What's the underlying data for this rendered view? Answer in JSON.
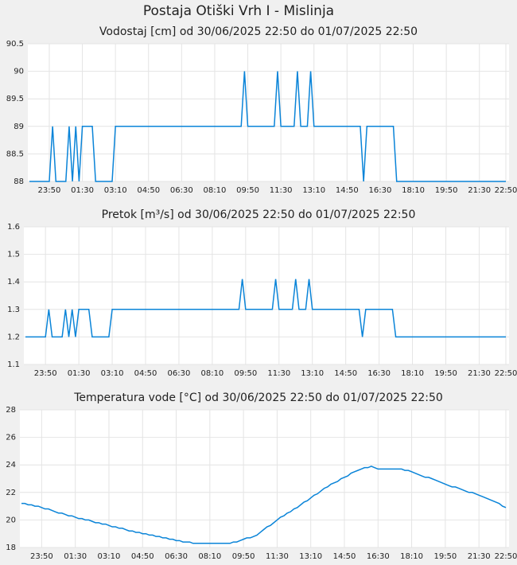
{
  "title": "Postaja Otiški Vrh I - Mislinja",
  "chart_data": [
    {
      "type": "line",
      "title": "Vodostaj [cm] od 30/06/2025 22:50 do 01/07/2025 22:50",
      "color": "#0a84d8",
      "grid": true,
      "categories": [
        null,
        null,
        null,
        null,
        null,
        null,
        "23:50",
        null,
        null,
        null,
        null,
        null,
        null,
        null,
        null,
        null,
        "01:30",
        null,
        null,
        null,
        null,
        null,
        null,
        null,
        null,
        null,
        "03:10",
        null,
        null,
        null,
        null,
        null,
        null,
        null,
        null,
        null,
        "04:50",
        null,
        null,
        null,
        null,
        null,
        null,
        null,
        null,
        null,
        "06:30",
        null,
        null,
        null,
        null,
        null,
        null,
        null,
        null,
        null,
        "08:10",
        null,
        null,
        null,
        null,
        null,
        null,
        null,
        null,
        null,
        "09:50",
        null,
        null,
        null,
        null,
        null,
        null,
        null,
        null,
        null,
        "11:30",
        null,
        null,
        null,
        null,
        null,
        null,
        null,
        null,
        null,
        "13:10",
        null,
        null,
        null,
        null,
        null,
        null,
        null,
        null,
        null,
        "14:50",
        null,
        null,
        null,
        null,
        null,
        null,
        null,
        null,
        null,
        "16:30",
        null,
        null,
        null,
        null,
        null,
        null,
        null,
        null,
        null,
        "18:10",
        null,
        null,
        null,
        null,
        null,
        null,
        null,
        null,
        null,
        "19:50",
        null,
        null,
        null,
        null,
        null,
        null,
        null,
        null,
        null,
        "21:30",
        null,
        null,
        null,
        null,
        null,
        null,
        null,
        "22:50"
      ],
      "values": [
        88,
        88,
        88,
        88,
        88,
        88,
        88,
        89,
        88,
        88,
        88,
        88,
        89,
        88,
        89,
        88,
        89,
        89,
        89,
        89,
        88,
        88,
        88,
        88,
        88,
        88,
        89,
        89,
        89,
        89,
        89,
        89,
        89,
        89,
        89,
        89,
        89,
        89,
        89,
        89,
        89,
        89,
        89,
        89,
        89,
        89,
        89,
        89,
        89,
        89,
        89,
        89,
        89,
        89,
        89,
        89,
        89,
        89,
        89,
        89,
        89,
        89,
        89,
        89,
        89,
        90,
        89,
        89,
        89,
        89,
        89,
        89,
        89,
        89,
        89,
        90,
        89,
        89,
        89,
        89,
        89,
        90,
        89,
        89,
        89,
        90,
        89,
        89,
        89,
        89,
        89,
        89,
        89,
        89,
        89,
        89,
        89,
        89,
        89,
        89,
        89,
        88,
        89,
        89,
        89,
        89,
        89,
        89,
        89,
        89,
        89,
        88,
        88,
        88,
        88,
        88,
        88,
        88,
        88,
        88,
        88,
        88,
        88,
        88,
        88,
        88,
        88,
        88,
        88,
        88,
        88,
        88,
        88,
        88,
        88,
        88,
        88,
        88,
        88,
        88,
        88,
        88,
        88,
        88,
        88
      ],
      "ylim": [
        88,
        90.5
      ],
      "yticks": [
        88,
        88.5,
        89,
        89.5,
        90,
        90.5
      ]
    },
    {
      "type": "line",
      "title": "Pretok [m³/s] od 30/06/2025 22:50 do 01/07/2025 22:50",
      "color": "#0a84d8",
      "grid": true,
      "categories": [
        null,
        null,
        null,
        null,
        null,
        null,
        "23:50",
        null,
        null,
        null,
        null,
        null,
        null,
        null,
        null,
        null,
        "01:30",
        null,
        null,
        null,
        null,
        null,
        null,
        null,
        null,
        null,
        "03:10",
        null,
        null,
        null,
        null,
        null,
        null,
        null,
        null,
        null,
        "04:50",
        null,
        null,
        null,
        null,
        null,
        null,
        null,
        null,
        null,
        "06:30",
        null,
        null,
        null,
        null,
        null,
        null,
        null,
        null,
        null,
        "08:10",
        null,
        null,
        null,
        null,
        null,
        null,
        null,
        null,
        null,
        "09:50",
        null,
        null,
        null,
        null,
        null,
        null,
        null,
        null,
        null,
        "11:30",
        null,
        null,
        null,
        null,
        null,
        null,
        null,
        null,
        null,
        "13:10",
        null,
        null,
        null,
        null,
        null,
        null,
        null,
        null,
        null,
        "14:50",
        null,
        null,
        null,
        null,
        null,
        null,
        null,
        null,
        null,
        "16:30",
        null,
        null,
        null,
        null,
        null,
        null,
        null,
        null,
        null,
        "18:10",
        null,
        null,
        null,
        null,
        null,
        null,
        null,
        null,
        null,
        "19:50",
        null,
        null,
        null,
        null,
        null,
        null,
        null,
        null,
        null,
        "21:30",
        null,
        null,
        null,
        null,
        null,
        null,
        null,
        "22:50"
      ],
      "values": [
        1.2,
        1.2,
        1.2,
        1.2,
        1.2,
        1.2,
        1.2,
        1.3,
        1.2,
        1.2,
        1.2,
        1.2,
        1.3,
        1.2,
        1.3,
        1.2,
        1.3,
        1.3,
        1.3,
        1.3,
        1.2,
        1.2,
        1.2,
        1.2,
        1.2,
        1.2,
        1.3,
        1.3,
        1.3,
        1.3,
        1.3,
        1.3,
        1.3,
        1.3,
        1.3,
        1.3,
        1.3,
        1.3,
        1.3,
        1.3,
        1.3,
        1.3,
        1.3,
        1.3,
        1.3,
        1.3,
        1.3,
        1.3,
        1.3,
        1.3,
        1.3,
        1.3,
        1.3,
        1.3,
        1.3,
        1.3,
        1.3,
        1.3,
        1.3,
        1.3,
        1.3,
        1.3,
        1.3,
        1.3,
        1.3,
        1.41,
        1.3,
        1.3,
        1.3,
        1.3,
        1.3,
        1.3,
        1.3,
        1.3,
        1.3,
        1.41,
        1.3,
        1.3,
        1.3,
        1.3,
        1.3,
        1.41,
        1.3,
        1.3,
        1.3,
        1.41,
        1.3,
        1.3,
        1.3,
        1.3,
        1.3,
        1.3,
        1.3,
        1.3,
        1.3,
        1.3,
        1.3,
        1.3,
        1.3,
        1.3,
        1.3,
        1.2,
        1.3,
        1.3,
        1.3,
        1.3,
        1.3,
        1.3,
        1.3,
        1.3,
        1.3,
        1.2,
        1.2,
        1.2,
        1.2,
        1.2,
        1.2,
        1.2,
        1.2,
        1.2,
        1.2,
        1.2,
        1.2,
        1.2,
        1.2,
        1.2,
        1.2,
        1.2,
        1.2,
        1.2,
        1.2,
        1.2,
        1.2,
        1.2,
        1.2,
        1.2,
        1.2,
        1.2,
        1.2,
        1.2,
        1.2,
        1.2,
        1.2,
        1.2,
        1.2
      ],
      "ylim": [
        1.1,
        1.6
      ],
      "yticks": [
        1.1,
        1.2,
        1.3,
        1.4,
        1.5,
        1.6
      ]
    },
    {
      "type": "line",
      "title": "Temperatura vode [°C] od 30/06/2025 22:50 do 01/07/2025 22:50",
      "color": "#0a84d8",
      "grid": true,
      "categories": [
        null,
        null,
        null,
        null,
        null,
        null,
        "23:50",
        null,
        null,
        null,
        null,
        null,
        null,
        null,
        null,
        null,
        "01:30",
        null,
        null,
        null,
        null,
        null,
        null,
        null,
        null,
        null,
        "03:10",
        null,
        null,
        null,
        null,
        null,
        null,
        null,
        null,
        null,
        "04:50",
        null,
        null,
        null,
        null,
        null,
        null,
        null,
        null,
        null,
        "06:30",
        null,
        null,
        null,
        null,
        null,
        null,
        null,
        null,
        null,
        "08:10",
        null,
        null,
        null,
        null,
        null,
        null,
        null,
        null,
        null,
        "09:50",
        null,
        null,
        null,
        null,
        null,
        null,
        null,
        null,
        null,
        "11:30",
        null,
        null,
        null,
        null,
        null,
        null,
        null,
        null,
        null,
        "13:10",
        null,
        null,
        null,
        null,
        null,
        null,
        null,
        null,
        null,
        "14:50",
        null,
        null,
        null,
        null,
        null,
        null,
        null,
        null,
        null,
        "16:30",
        null,
        null,
        null,
        null,
        null,
        null,
        null,
        null,
        null,
        "18:10",
        null,
        null,
        null,
        null,
        null,
        null,
        null,
        null,
        null,
        "19:50",
        null,
        null,
        null,
        null,
        null,
        null,
        null,
        null,
        null,
        "21:30",
        null,
        null,
        null,
        null,
        null,
        null,
        null,
        "22:50"
      ],
      "values": [
        21.2,
        21.2,
        21.1,
        21.1,
        21.0,
        21.0,
        20.9,
        20.8,
        20.8,
        20.7,
        20.6,
        20.5,
        20.5,
        20.4,
        20.3,
        20.3,
        20.2,
        20.1,
        20.1,
        20.0,
        20.0,
        19.9,
        19.8,
        19.8,
        19.7,
        19.7,
        19.6,
        19.5,
        19.5,
        19.4,
        19.4,
        19.3,
        19.2,
        19.2,
        19.1,
        19.1,
        19.0,
        19.0,
        18.9,
        18.9,
        18.8,
        18.8,
        18.7,
        18.7,
        18.6,
        18.6,
        18.5,
        18.5,
        18.4,
        18.4,
        18.4,
        18.3,
        18.3,
        18.3,
        18.3,
        18.3,
        18.3,
        18.3,
        18.3,
        18.3,
        18.3,
        18.3,
        18.3,
        18.4,
        18.4,
        18.5,
        18.6,
        18.7,
        18.7,
        18.8,
        18.9,
        19.1,
        19.3,
        19.5,
        19.6,
        19.8,
        20.0,
        20.2,
        20.3,
        20.5,
        20.6,
        20.8,
        20.9,
        21.1,
        21.3,
        21.4,
        21.6,
        21.8,
        21.9,
        22.1,
        22.3,
        22.4,
        22.6,
        22.7,
        22.8,
        23.0,
        23.1,
        23.2,
        23.4,
        23.5,
        23.6,
        23.7,
        23.8,
        23.8,
        23.9,
        23.8,
        23.7,
        23.7,
        23.7,
        23.7,
        23.7,
        23.7,
        23.7,
        23.7,
        23.6,
        23.6,
        23.5,
        23.4,
        23.3,
        23.2,
        23.1,
        23.1,
        23.0,
        22.9,
        22.8,
        22.7,
        22.6,
        22.5,
        22.4,
        22.4,
        22.3,
        22.2,
        22.1,
        22.0,
        22.0,
        21.9,
        21.8,
        21.7,
        21.6,
        21.5,
        21.4,
        21.3,
        21.2,
        21.0,
        20.9
      ],
      "ylim": [
        18,
        28
      ],
      "yticks": [
        18,
        20,
        22,
        24,
        26,
        28
      ]
    }
  ]
}
